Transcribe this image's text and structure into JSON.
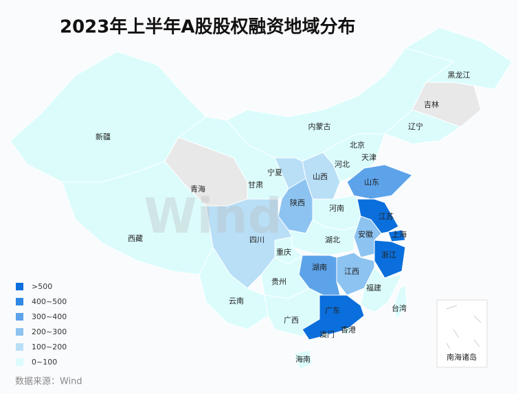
{
  "title": "2023年上半年A股股权融资地域分布",
  "legend": [
    {
      "label": ">500",
      "color": "#0a6fdc"
    },
    {
      "label": "400~500",
      "color": "#2e88e6"
    },
    {
      "label": "300~400",
      "color": "#5ca3ea"
    },
    {
      "label": "200~300",
      "color": "#8cc3f1"
    },
    {
      "label": "100~200",
      "color": "#b9dff7"
    },
    {
      "label": "0~100",
      "color": "#dcfcfc"
    }
  ],
  "provinces": [
    {
      "name": "新疆",
      "color": "#dcfcfc"
    },
    {
      "name": "西藏",
      "color": "#dcfcfc"
    },
    {
      "name": "青海",
      "color": "#e8e8e8"
    },
    {
      "name": "甘肃",
      "color": "#dcfcfc"
    },
    {
      "name": "内蒙古",
      "color": "#dcfcfc"
    },
    {
      "name": "黑龙江",
      "color": "#dcfcfc"
    },
    {
      "name": "吉林",
      "color": "#e8e8e8"
    },
    {
      "name": "辽宁",
      "color": "#dcfcfc"
    },
    {
      "name": "北京",
      "color": "#0a6fdc"
    },
    {
      "name": "天津",
      "color": "#dcfcfc"
    },
    {
      "name": "河北",
      "color": "#dcfcfc"
    },
    {
      "name": "山西",
      "color": "#b9dff7"
    },
    {
      "name": "宁夏",
      "color": "#b9dff7"
    },
    {
      "name": "陕西",
      "color": "#8cc3f1"
    },
    {
      "name": "山东",
      "color": "#5ca3ea"
    },
    {
      "name": "河南",
      "color": "#dcfcfc"
    },
    {
      "name": "江苏",
      "color": "#0a6fdc"
    },
    {
      "name": "上海",
      "color": "#0a6fdc"
    },
    {
      "name": "安徽",
      "color": "#8cc3f1"
    },
    {
      "name": "浙江",
      "color": "#0a6fdc"
    },
    {
      "name": "湖北",
      "color": "#dcfcfc"
    },
    {
      "name": "江西",
      "color": "#8cc3f1"
    },
    {
      "name": "福建",
      "color": "#dcfcfc"
    },
    {
      "name": "湖南",
      "color": "#5ca3ea"
    },
    {
      "name": "重庆",
      "color": "#dcfcfc"
    },
    {
      "name": "四川",
      "color": "#b9dff7"
    },
    {
      "name": "贵州",
      "color": "#dcfcfc"
    },
    {
      "name": "云南",
      "color": "#dcfcfc"
    },
    {
      "name": "广西",
      "color": "#dcfcfc"
    },
    {
      "name": "广东",
      "color": "#0a6fdc"
    },
    {
      "name": "香港",
      "color": "#dcfcfc"
    },
    {
      "name": "澳门",
      "color": "#dcfcfc"
    },
    {
      "name": "海南",
      "color": "#dcfcfc"
    },
    {
      "name": "台湾",
      "color": "#dcfcfc"
    }
  ],
  "inset_label": "南海诸岛",
  "watermark": "Wind",
  "source": "数据来源：Wind"
}
